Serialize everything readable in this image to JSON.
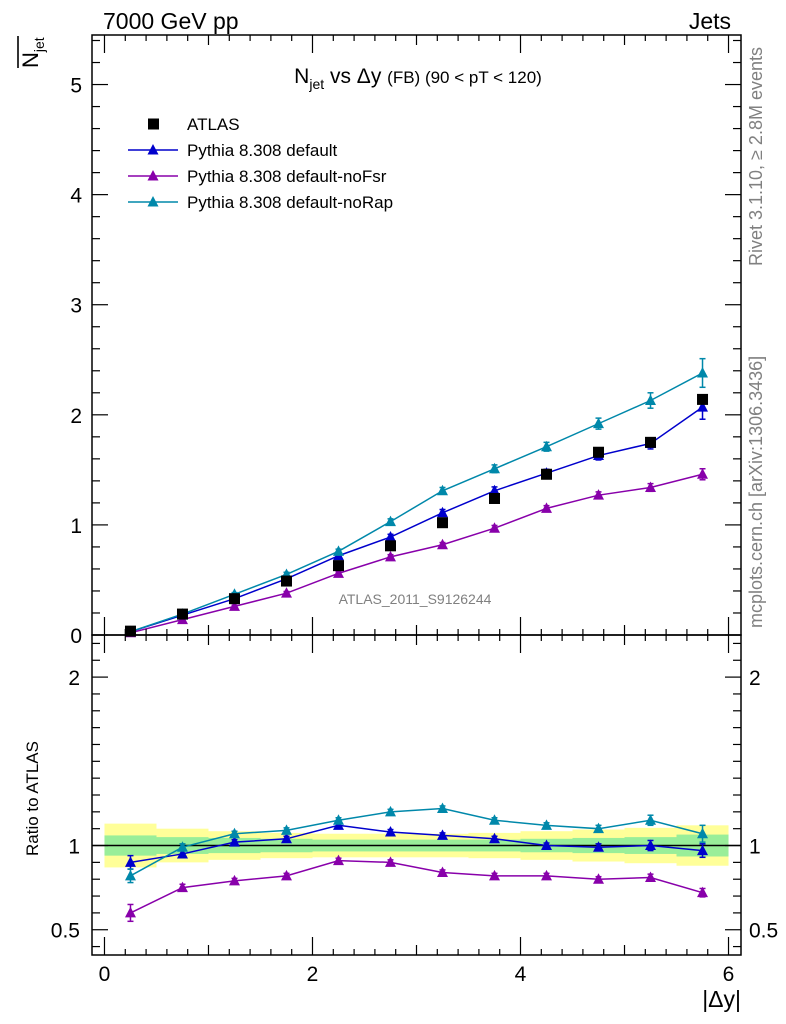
{
  "header": {
    "left_label": "7000 GeV pp",
    "right_label": "Jets"
  },
  "side_labels": {
    "rivet": "Rivet 3.1.10, ≥ 2.8M events",
    "mcplots": "mcplots.cern.ch [arXiv:1306.3436]"
  },
  "watermark": "ATLAS_2011_S9126244",
  "chart_data": [
    {
      "type": "line",
      "panel": "main",
      "title": {
        "main": "N",
        "sub": "jet",
        "rest": " vs Δy ",
        "paren": "(FB) (90 < pT < 120)"
      },
      "ylabel": {
        "main": "N",
        "sub": "jet",
        "overline": true
      },
      "xlabel": "|Δy|",
      "xlim": [
        -0.12,
        6.12
      ],
      "ylim": [
        0,
        5.45
      ],
      "yticks": [
        0,
        1,
        2,
        3,
        4,
        5
      ],
      "xticks": [
        0,
        2,
        4,
        6
      ],
      "legend_position": "top-left",
      "x": [
        0.25,
        0.75,
        1.25,
        1.75,
        2.25,
        2.75,
        3.25,
        3.75,
        4.25,
        4.75,
        5.25,
        5.75
      ],
      "series": [
        {
          "name": "ATLAS",
          "marker": "square",
          "color": "#000000",
          "values": [
            0.035,
            0.19,
            0.33,
            0.49,
            0.63,
            0.81,
            1.02,
            1.24,
            1.46,
            1.66,
            1.75,
            2.14
          ]
        },
        {
          "name": "Pythia 8.308 default",
          "marker": "triangle",
          "color": "#0000cc",
          "values": [
            0.03,
            0.18,
            0.33,
            0.51,
            0.72,
            0.89,
            1.11,
            1.31,
            1.47,
            1.63,
            1.74,
            2.07
          ],
          "errors": [
            0.005,
            0.01,
            0.015,
            0.02,
            0.02,
            0.025,
            0.03,
            0.035,
            0.035,
            0.04,
            0.05,
            0.11
          ]
        },
        {
          "name": "Pythia 8.308 default-noFsr",
          "marker": "triangle",
          "color": "#8800aa",
          "values": [
            0.02,
            0.14,
            0.26,
            0.38,
            0.56,
            0.71,
            0.82,
            0.97,
            1.15,
            1.27,
            1.34,
            1.46
          ],
          "errors": [
            0.005,
            0.01,
            0.01,
            0.015,
            0.015,
            0.02,
            0.02,
            0.025,
            0.025,
            0.03,
            0.035,
            0.05
          ]
        },
        {
          "name": "Pythia 8.308 default-noRap",
          "marker": "triangle",
          "color": "#0088aa",
          "values": [
            0.03,
            0.19,
            0.37,
            0.55,
            0.76,
            1.03,
            1.31,
            1.51,
            1.71,
            1.92,
            2.13,
            2.38
          ],
          "errors": [
            0.005,
            0.01,
            0.015,
            0.02,
            0.02,
            0.025,
            0.03,
            0.035,
            0.04,
            0.05,
            0.07,
            0.13
          ]
        }
      ]
    },
    {
      "type": "line",
      "panel": "ratio",
      "ylabel": "Ratio to ATLAS",
      "xlabel": "|Δy|",
      "xlim": [
        -0.12,
        6.12
      ],
      "ylim": [
        0.35,
        2.25
      ],
      "yticks": [
        0.5,
        1,
        2
      ],
      "xticks": [
        0,
        2,
        4,
        6
      ],
      "x": [
        0.25,
        0.75,
        1.25,
        1.75,
        2.25,
        2.75,
        3.25,
        3.75,
        4.25,
        4.75,
        5.25,
        5.75
      ],
      "band_edges": [
        0.0,
        0.5,
        1.0,
        1.5,
        2.0,
        2.5,
        3.0,
        3.5,
        4.0,
        4.5,
        5.0,
        5.5,
        6.0
      ],
      "stat_band": [
        [
          0.94,
          1.06
        ],
        [
          0.95,
          1.05
        ],
        [
          0.955,
          1.045
        ],
        [
          0.96,
          1.04
        ],
        [
          0.965,
          1.035
        ],
        [
          0.965,
          1.035
        ],
        [
          0.965,
          1.035
        ],
        [
          0.965,
          1.035
        ],
        [
          0.96,
          1.04
        ],
        [
          0.955,
          1.045
        ],
        [
          0.95,
          1.05
        ],
        [
          0.935,
          1.065
        ]
      ],
      "syst_band": [
        [
          0.87,
          1.13
        ],
        [
          0.9,
          1.1
        ],
        [
          0.915,
          1.085
        ],
        [
          0.925,
          1.075
        ],
        [
          0.93,
          1.07
        ],
        [
          0.93,
          1.07
        ],
        [
          0.93,
          1.07
        ],
        [
          0.925,
          1.075
        ],
        [
          0.915,
          1.085
        ],
        [
          0.905,
          1.095
        ],
        [
          0.895,
          1.105
        ],
        [
          0.88,
          1.12
        ]
      ],
      "series": [
        {
          "name": "Pythia 8.308 default",
          "color": "#0000cc",
          "values": [
            0.9,
            0.95,
            1.02,
            1.04,
            1.12,
            1.08,
            1.06,
            1.04,
            1.0,
            0.99,
            1.0,
            0.97
          ],
          "errors": [
            0.04,
            0.02,
            0.015,
            0.015,
            0.015,
            0.015,
            0.015,
            0.015,
            0.015,
            0.02,
            0.03,
            0.04
          ]
        },
        {
          "name": "Pythia 8.308 default-noFsr",
          "color": "#8800aa",
          "values": [
            0.6,
            0.75,
            0.79,
            0.82,
            0.91,
            0.9,
            0.84,
            0.82,
            0.82,
            0.8,
            0.81,
            0.72
          ],
          "errors": [
            0.05,
            0.02,
            0.015,
            0.015,
            0.015,
            0.015,
            0.015,
            0.015,
            0.015,
            0.015,
            0.02,
            0.025
          ]
        },
        {
          "name": "Pythia 8.308 default-noRap",
          "color": "#0088aa",
          "values": [
            0.82,
            0.99,
            1.07,
            1.09,
            1.15,
            1.2,
            1.22,
            1.15,
            1.12,
            1.1,
            1.15,
            1.07
          ],
          "errors": [
            0.04,
            0.02,
            0.015,
            0.015,
            0.015,
            0.015,
            0.015,
            0.015,
            0.015,
            0.02,
            0.03,
            0.05
          ]
        }
      ]
    }
  ]
}
